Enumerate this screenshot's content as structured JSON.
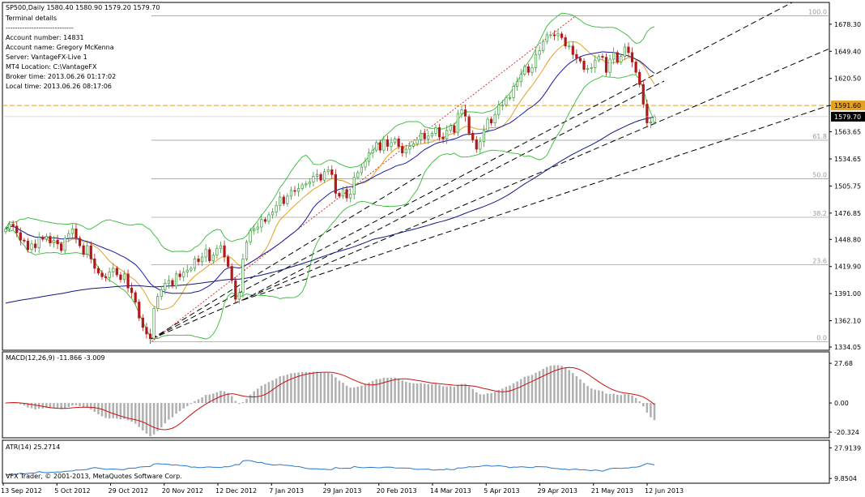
{
  "header": {
    "symbol_line": "SP500,Daily  1580.40 1580.90 1579.20 1579.70",
    "terminal_title": "Terminal details",
    "separator": "-----------------------------",
    "account_number": "Account number: 14831",
    "account_name": "Account name: Gregory McKenna",
    "server": "Server: VantageFX-Live 1",
    "mt4_location": "MT4 Location: C:\\VantageFX",
    "broker_time": "Broker time: 2013.06.26 01:17:02",
    "local_time": "Local time: 2013.06.26 08:17:06"
  },
  "footer": "VFX Trader, © 2001-2013, MetaQuotes Software Corp.",
  "colors": {
    "bull": "#3a9a3a",
    "bear": "#b01a1a",
    "bollinger": "#33bb33",
    "ma_fast": "#e6a020",
    "ma_slow": "#1a1aa0",
    "ma_long": "#101880",
    "fib_line": "#a0a0a0",
    "horizontal_level": "#e6a020",
    "macd_hist": "#b0b0b0",
    "macd_signal": "#cc1111",
    "atr": "#2a78c8",
    "current_price_bg": "#000000"
  },
  "chart_data": [
    {
      "type": "candlestick",
      "name": "SP500,Daily",
      "ylim": [
        1334.05,
        1692.0
      ],
      "price_axis_labels": [
        "1678.30",
        "1649.40",
        "1620.50",
        "1591.60",
        "1563.65",
        "1534.65",
        "1505.75",
        "1476.85",
        "1448.80",
        "1419.90",
        "1391.00",
        "1362.10",
        "1334.05"
      ],
      "price_axis_values": [
        1678.3,
        1649.4,
        1620.5,
        1591.6,
        1563.65,
        1534.65,
        1505.75,
        1476.85,
        1448.8,
        1419.9,
        1391.0,
        1362.1,
        1334.05
      ],
      "current_price": 1579.7,
      "current_price_label": "1579.70",
      "horizontal_level": 1591.6,
      "horizontal_level_label": "1591.60",
      "fibonacci": {
        "levels": [
          {
            "label": "100.0",
            "price": 1687.2
          },
          {
            "label": "61.8",
            "price": 1554.6
          },
          {
            "label": "50.0",
            "price": 1513.5
          },
          {
            "label": "38.2",
            "price": 1472.4
          },
          {
            "label": "23.6",
            "price": 1421.8
          },
          {
            "label": "0.0",
            "price": 1339.8
          }
        ]
      },
      "x_labels": [
        "13 Sep 2012",
        "5 Oct 2012",
        "29 Oct 2012",
        "20 Nov 2012",
        "12 Dec 2012",
        "7 Jan 2013",
        "29 Jan 2013",
        "20 Feb 2013",
        "14 Mar 2013",
        "5 Apr 2013",
        "29 Apr 2013",
        "21 May 2013",
        "12 Jun 2013"
      ],
      "closes": [
        1460,
        1465,
        1463,
        1456,
        1448,
        1447,
        1438,
        1444,
        1440,
        1451,
        1449,
        1452,
        1445,
        1448,
        1444,
        1437,
        1450,
        1455,
        1460,
        1450,
        1442,
        1433,
        1442,
        1428,
        1418,
        1413,
        1409,
        1408,
        1414,
        1418,
        1411,
        1406,
        1412,
        1397,
        1392,
        1382,
        1365,
        1355,
        1348,
        1343,
        1375,
        1388,
        1395,
        1402,
        1405,
        1399,
        1412,
        1409,
        1414,
        1416,
        1418,
        1428,
        1425,
        1430,
        1438,
        1426,
        1432,
        1439,
        1442,
        1430,
        1420,
        1405,
        1385,
        1392,
        1428,
        1446,
        1458,
        1460,
        1462,
        1470,
        1468,
        1475,
        1478,
        1485,
        1494,
        1487,
        1495,
        1501,
        1500,
        1503,
        1507,
        1508,
        1510,
        1516,
        1518,
        1512,
        1521,
        1523,
        1518,
        1498,
        1495,
        1502,
        1493,
        1497,
        1515,
        1520,
        1526,
        1532,
        1541,
        1544,
        1552,
        1544,
        1555,
        1548,
        1552,
        1556,
        1548,
        1541,
        1545,
        1548,
        1551,
        1555,
        1562,
        1556,
        1559,
        1562,
        1568,
        1558,
        1556,
        1565,
        1570,
        1563,
        1583,
        1587,
        1580,
        1562,
        1555,
        1545,
        1553,
        1565,
        1577,
        1573,
        1582,
        1592,
        1592,
        1600,
        1600,
        1612,
        1617,
        1625,
        1633,
        1627,
        1632,
        1646,
        1650,
        1660,
        1667,
        1667,
        1666,
        1668,
        1664,
        1655,
        1655,
        1646,
        1642,
        1639,
        1630,
        1631,
        1632,
        1640,
        1644,
        1643,
        1627,
        1641,
        1648,
        1638,
        1644,
        1654,
        1648,
        1638,
        1627,
        1614,
        1593,
        1573,
        1574,
        1579.7
      ]
    },
    {
      "type": "bar",
      "name": "MACD(12,26,9)",
      "title": "MACD(12,26,9) -11.866 -3.009",
      "axis_labels": [
        "27.68",
        "0.00",
        "-20.324"
      ],
      "axis_values": [
        27.68,
        0.0,
        -20.324
      ],
      "ylim": [
        -22.0,
        30.0
      ],
      "last_macd": -11.866,
      "last_signal": -3.009
    },
    {
      "type": "line",
      "name": "ATR(14)",
      "title": "ATR(14) 25.2714",
      "axis_labels": [
        "27.9139",
        "9.8504"
      ],
      "axis_values": [
        27.9139,
        9.8504
      ],
      "ylim": [
        8.0,
        29.5
      ],
      "last_value": 25.2714
    }
  ]
}
